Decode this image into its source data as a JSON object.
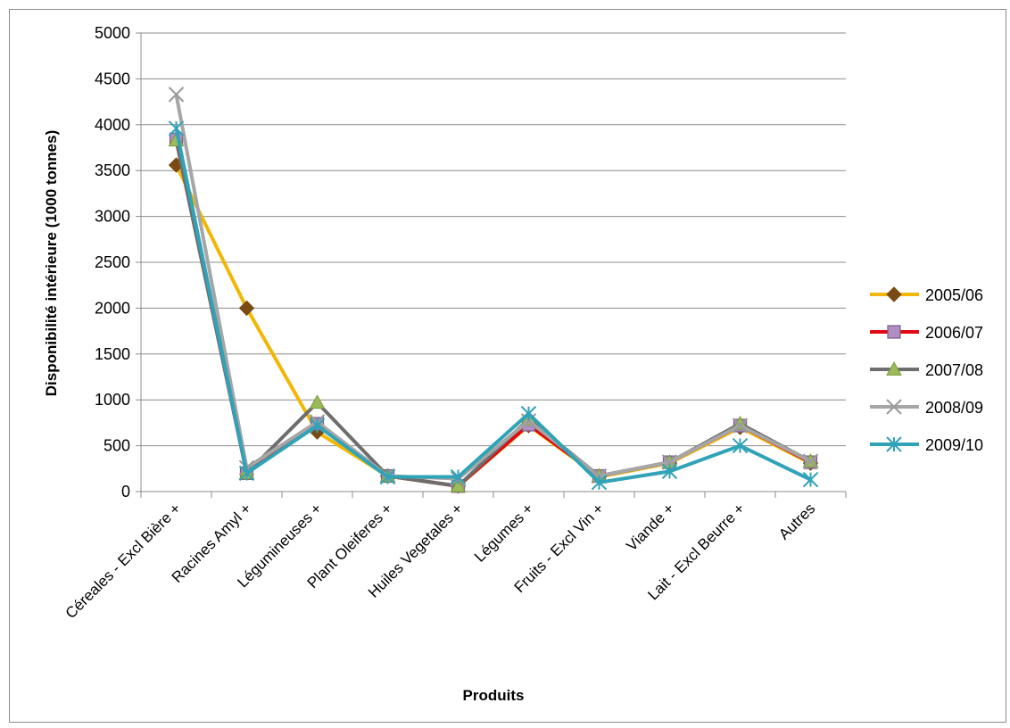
{
  "chart_data": {
    "type": "line",
    "title": "",
    "xlabel": "Produits",
    "ylabel": "Disponibilité intérieure (1000 tonnes)",
    "ylim": [
      0,
      5000
    ],
    "yticks": [
      0,
      500,
      1000,
      1500,
      2000,
      2500,
      3000,
      3500,
      4000,
      4500,
      5000
    ],
    "grid": "horizontal",
    "legend_position": "right",
    "categories": [
      "Céreales - Excl Bière +",
      "Racines Amyl +",
      "Légumineuses +",
      "Plant Oleiferes +",
      "Huiles Vegetales +",
      "Légumes +",
      "Fruits - Excl Vin +",
      "Viande +",
      "Lait - Excl Beurre +",
      "Autres"
    ],
    "series": [
      {
        "name": "2005/06",
        "line_color": "#f2b705",
        "marker_color": "#7a4a12",
        "marker": "diamond",
        "values": [
          3560,
          2000,
          650,
          170,
          60,
          720,
          160,
          310,
          700,
          310
        ]
      },
      {
        "name": "2006/07",
        "line_color": "#e30613",
        "marker_color": "#b08fc0",
        "marker": "square",
        "values": [
          3840,
          200,
          740,
          170,
          60,
          730,
          170,
          320,
          720,
          320
        ]
      },
      {
        "name": "2007/08",
        "line_color": "#6e6e6e",
        "marker_color": "#9bbb59",
        "marker": "triangle",
        "values": [
          3830,
          200,
          970,
          170,
          60,
          790,
          170,
          320,
          740,
          330
        ]
      },
      {
        "name": "2008/09",
        "line_color": "#a6a6a6",
        "marker_color": "#9a9a9a",
        "marker": "x",
        "values": [
          4330,
          260,
          760,
          170,
          140,
          770,
          170,
          320,
          720,
          330
        ]
      },
      {
        "name": "2009/10",
        "line_color": "#31a3b8",
        "marker_color": "#31a3b8",
        "marker": "star",
        "values": [
          3960,
          200,
          720,
          160,
          160,
          850,
          100,
          220,
          500,
          130
        ]
      }
    ]
  }
}
